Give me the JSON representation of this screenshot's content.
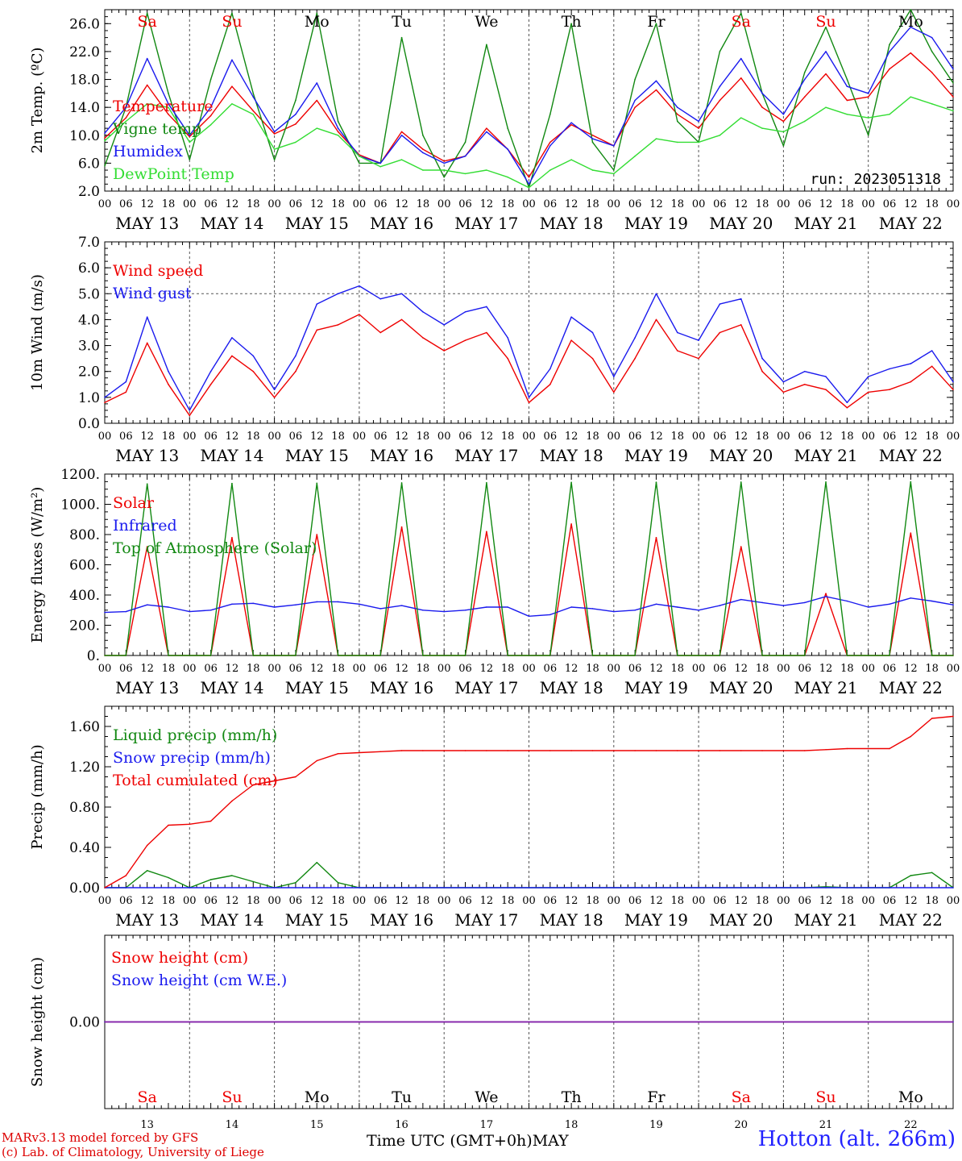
{
  "run_label": "run: 2023051318",
  "footer": {
    "model": "MARv3.13 model forced by GFS",
    "lab": "(c) Lab. of Climatology, University of Liege",
    "xtitle": "Time UTC (GMT+0h)",
    "month": "MAY",
    "station": "Hotton (alt. 266m)"
  },
  "days": [
    "MAY 13",
    "MAY 14",
    "MAY 15",
    "MAY 16",
    "MAY 17",
    "MAY 18",
    "MAY 19",
    "MAY 20",
    "MAY 21",
    "MAY 22"
  ],
  "weekdays": [
    "Sa",
    "Su",
    "Mo",
    "Tu",
    "We",
    "Th",
    "Fr",
    "Sa",
    "Su",
    "Mo"
  ],
  "day_numbers": [
    "13",
    "14",
    "15",
    "16",
    "17",
    "18",
    "19",
    "20",
    "21",
    "22"
  ],
  "hour_ticks": [
    "00",
    "06",
    "12",
    "18"
  ],
  "end_tick": "00",
  "colors": {
    "red": "#ee0000",
    "green": "#118811",
    "blue": "#1a1aee",
    "lightgreen": "#33dd33",
    "purple": "#8822aa",
    "weekend": "#ee0000"
  },
  "chart_data": [
    {
      "type": "line",
      "ylabel": "2m Temp. (ºC)",
      "ylim": [
        2,
        28
      ],
      "yticks": [
        "2.0",
        "6.0",
        "10.0",
        "14.0",
        "18.0",
        "22.0",
        "26.0"
      ],
      "ytick_values": [
        2,
        6,
        10,
        14,
        18,
        22,
        26
      ],
      "legend": [
        "Temperature",
        "Vigne temp",
        "Humidex",
        "DewPoint Temp"
      ],
      "x_hours": [
        0,
        6,
        12,
        18,
        24,
        30,
        36,
        42,
        48,
        54,
        60,
        66,
        72,
        78,
        84,
        90,
        96,
        102,
        108,
        114,
        120,
        126,
        132,
        138,
        144,
        150,
        156,
        162,
        168,
        174,
        180,
        186,
        192,
        198,
        204,
        210,
        216,
        222,
        228,
        234,
        240
      ],
      "series": [
        {
          "name": "Temperature",
          "color": "red",
          "values": [
            9.6,
            12.5,
            17.2,
            13.0,
            9.8,
            12.8,
            17.0,
            13.5,
            10.2,
            11.6,
            15.0,
            10.5,
            7.2,
            6.0,
            10.5,
            8.0,
            6.3,
            7.0,
            11.0,
            8.0,
            4.0,
            9.0,
            11.5,
            10.0,
            8.5,
            14.0,
            16.5,
            13.0,
            11.0,
            15.0,
            18.2,
            14.0,
            12.0,
            15.5,
            18.8,
            15.0,
            15.5,
            19.5,
            21.8,
            19.0,
            15.5
          ]
        },
        {
          "name": "Vigne temp",
          "color": "green",
          "values": [
            5.6,
            14.0,
            27.5,
            16.0,
            6.5,
            18.0,
            27.5,
            16.0,
            6.5,
            15.0,
            27.5,
            12.0,
            6.0,
            6.0,
            24.0,
            10.0,
            4.0,
            9.0,
            23.0,
            11.0,
            2.5,
            13.0,
            26.0,
            9.0,
            5.0,
            18.0,
            26.0,
            12.0,
            9.0,
            22.0,
            27.5,
            16.0,
            8.5,
            19.0,
            25.5,
            18.0,
            10.0,
            23.0,
            28.0,
            22.0,
            17.5
          ]
        },
        {
          "name": "Humidex",
          "color": "blue",
          "values": [
            10.3,
            14.0,
            21.0,
            14.5,
            10.0,
            14.0,
            20.8,
            15.5,
            10.5,
            13.0,
            17.5,
            11.0,
            7.0,
            6.0,
            10.0,
            7.5,
            6.0,
            7.0,
            10.5,
            8.0,
            3.0,
            8.5,
            11.8,
            9.5,
            8.5,
            15.0,
            17.8,
            14.0,
            12.0,
            17.0,
            21.0,
            16.0,
            13.0,
            18.0,
            22.0,
            17.0,
            16.0,
            22.0,
            25.5,
            24.0,
            19.5
          ]
        },
        {
          "name": "DewPoint Temp",
          "color": "lightgreen",
          "values": [
            9.2,
            12.0,
            14.5,
            14.0,
            9.0,
            11.5,
            14.5,
            13.0,
            8.0,
            9.0,
            11.0,
            10.0,
            7.0,
            5.5,
            6.5,
            5.0,
            5.0,
            4.5,
            5.0,
            4.0,
            2.5,
            5.0,
            6.5,
            5.0,
            4.5,
            7.0,
            9.5,
            9.0,
            9.0,
            10.0,
            12.5,
            11.0,
            10.5,
            12.0,
            14.0,
            13.0,
            12.5,
            13.0,
            15.5,
            14.5,
            13.5
          ]
        }
      ]
    },
    {
      "type": "line",
      "ylabel": "10m Wind (m/s)",
      "ylim": [
        0,
        7
      ],
      "yticks": [
        "0.0",
        "1.0",
        "2.0",
        "3.0",
        "4.0",
        "5.0",
        "6.0",
        "7.0"
      ],
      "ytick_values": [
        0,
        1,
        2,
        3,
        4,
        5,
        6,
        7
      ],
      "dashed_y": 5,
      "legend": [
        "Wind speed",
        "Wind gust"
      ],
      "x_hours": [
        0,
        6,
        12,
        18,
        24,
        30,
        36,
        42,
        48,
        54,
        60,
        66,
        72,
        78,
        84,
        90,
        96,
        102,
        108,
        114,
        120,
        126,
        132,
        138,
        144,
        150,
        156,
        162,
        168,
        174,
        180,
        186,
        192,
        198,
        204,
        210,
        216,
        222,
        228,
        234,
        240
      ],
      "series": [
        {
          "name": "Wind speed",
          "color": "red",
          "values": [
            0.8,
            1.2,
            3.1,
            1.5,
            0.3,
            1.5,
            2.6,
            2.0,
            1.0,
            2.0,
            3.6,
            3.8,
            4.2,
            3.5,
            4.0,
            3.3,
            2.8,
            3.2,
            3.5,
            2.5,
            0.8,
            1.5,
            3.2,
            2.5,
            1.2,
            2.5,
            4.0,
            2.8,
            2.5,
            3.5,
            3.8,
            2.0,
            1.2,
            1.5,
            1.3,
            0.6,
            1.2,
            1.3,
            1.6,
            2.2,
            1.3
          ]
        },
        {
          "name": "Wind gust",
          "color": "blue",
          "values": [
            1.0,
            1.6,
            4.1,
            2.0,
            0.5,
            2.0,
            3.3,
            2.6,
            1.3,
            2.6,
            4.6,
            5.0,
            5.3,
            4.8,
            5.0,
            4.3,
            3.8,
            4.3,
            4.5,
            3.3,
            1.0,
            2.1,
            4.1,
            3.5,
            1.8,
            3.3,
            5.0,
            3.5,
            3.2,
            4.6,
            4.8,
            2.5,
            1.6,
            2.0,
            1.8,
            0.8,
            1.8,
            2.1,
            2.3,
            2.8,
            1.6
          ]
        }
      ]
    },
    {
      "type": "line",
      "ylabel": "Energy fluxes (W/m²)",
      "ylim": [
        0,
        1200
      ],
      "yticks": [
        "0.",
        "200.",
        "400.",
        "600.",
        "800.",
        "1000.",
        "1200."
      ],
      "ytick_values": [
        0,
        200,
        400,
        600,
        800,
        1000,
        1200
      ],
      "legend": [
        "Solar",
        "Infrared",
        "Top of Atmosphere (Solar)"
      ],
      "x_hours": [
        0,
        6,
        12,
        18,
        24,
        30,
        36,
        42,
        48,
        54,
        60,
        66,
        72,
        78,
        84,
        90,
        96,
        102,
        108,
        114,
        120,
        126,
        132,
        138,
        144,
        150,
        156,
        162,
        168,
        174,
        180,
        186,
        192,
        198,
        204,
        210,
        216,
        222,
        228,
        234,
        240
      ],
      "series": [
        {
          "name": "Solar",
          "color": "red",
          "values": [
            0,
            0,
            720,
            0,
            0,
            0,
            780,
            0,
            0,
            0,
            800,
            0,
            0,
            0,
            850,
            0,
            0,
            0,
            820,
            0,
            0,
            0,
            870,
            0,
            0,
            0,
            780,
            0,
            0,
            0,
            720,
            0,
            0,
            0,
            410,
            0,
            0,
            0,
            810,
            0,
            0
          ]
        },
        {
          "name": "Infrared",
          "color": "blue",
          "values": [
            285,
            290,
            335,
            320,
            290,
            300,
            340,
            345,
            320,
            335,
            355,
            355,
            340,
            310,
            330,
            300,
            290,
            300,
            320,
            320,
            260,
            270,
            320,
            310,
            290,
            300,
            340,
            320,
            300,
            330,
            370,
            350,
            330,
            350,
            390,
            360,
            320,
            340,
            380,
            360,
            335
          ]
        },
        {
          "name": "Top of Atmosphere (Solar)",
          "color": "green",
          "values": [
            0,
            0,
            1135,
            0,
            0,
            0,
            1138,
            0,
            0,
            0,
            1140,
            0,
            0,
            0,
            1142,
            0,
            0,
            0,
            1143,
            0,
            0,
            0,
            1145,
            0,
            0,
            0,
            1146,
            0,
            0,
            0,
            1147,
            0,
            0,
            0,
            1148,
            0,
            0,
            0,
            1149,
            0,
            0
          ]
        }
      ]
    },
    {
      "type": "line",
      "ylabel": "Precip (mm/h)",
      "ylim": [
        0,
        1.8
      ],
      "yticks": [
        "0.00",
        "0.40",
        "0.80",
        "1.20",
        "1.60"
      ],
      "ytick_values": [
        0,
        0.4,
        0.8,
        1.2,
        1.6
      ],
      "legend": [
        "Liquid precip (mm/h)",
        "Snow precip (mm/h)",
        "Total cumulated (cm)"
      ],
      "x_hours": [
        0,
        6,
        12,
        18,
        24,
        30,
        36,
        42,
        48,
        54,
        60,
        66,
        72,
        78,
        84,
        90,
        96,
        102,
        108,
        114,
        120,
        126,
        132,
        138,
        144,
        150,
        156,
        162,
        168,
        174,
        180,
        186,
        192,
        198,
        204,
        210,
        216,
        222,
        228,
        234,
        240
      ],
      "series": [
        {
          "name": "Liquid precip (mm/h)",
          "color": "green",
          "values": [
            0,
            0,
            0.17,
            0.1,
            0,
            0.08,
            0.12,
            0.06,
            0,
            0.05,
            0.25,
            0.05,
            0,
            0,
            0,
            0,
            0,
            0,
            0,
            0,
            0,
            0,
            0,
            0,
            0,
            0,
            0,
            0,
            0,
            0,
            0,
            0,
            0,
            0,
            0.01,
            0,
            0,
            0,
            0.12,
            0.15,
            0
          ]
        },
        {
          "name": "Snow precip (mm/h)",
          "color": "blue",
          "values": [
            0,
            0,
            0,
            0,
            0,
            0,
            0,
            0,
            0,
            0,
            0,
            0,
            0,
            0,
            0,
            0,
            0,
            0,
            0,
            0,
            0,
            0,
            0,
            0,
            0,
            0,
            0,
            0,
            0,
            0,
            0,
            0,
            0,
            0,
            0,
            0,
            0,
            0,
            0,
            0,
            0
          ]
        },
        {
          "name": "Total cumulated (cm)",
          "color": "red",
          "values": [
            0,
            0.12,
            0.42,
            0.62,
            0.63,
            0.66,
            0.86,
            1.02,
            1.06,
            1.1,
            1.26,
            1.33,
            1.34,
            1.35,
            1.36,
            1.36,
            1.36,
            1.36,
            1.36,
            1.36,
            1.36,
            1.36,
            1.36,
            1.36,
            1.36,
            1.36,
            1.36,
            1.36,
            1.36,
            1.36,
            1.36,
            1.36,
            1.36,
            1.36,
            1.37,
            1.38,
            1.38,
            1.38,
            1.5,
            1.68,
            1.7
          ]
        }
      ]
    },
    {
      "type": "line",
      "ylabel": "Snow height (cm)",
      "ylim": [
        -1,
        1
      ],
      "yticks": [
        "0.00"
      ],
      "ytick_values": [
        0
      ],
      "legend": [
        "Snow height (cm)",
        "Snow height (cm W.E.)"
      ],
      "x_hours": [
        0,
        240
      ],
      "series": [
        {
          "name": "Snow height (cm)",
          "color": "red",
          "values": [
            0,
            0
          ]
        },
        {
          "name": "Snow height (cm W.E.)",
          "color": "blue",
          "values": [
            0,
            0
          ]
        }
      ]
    }
  ]
}
